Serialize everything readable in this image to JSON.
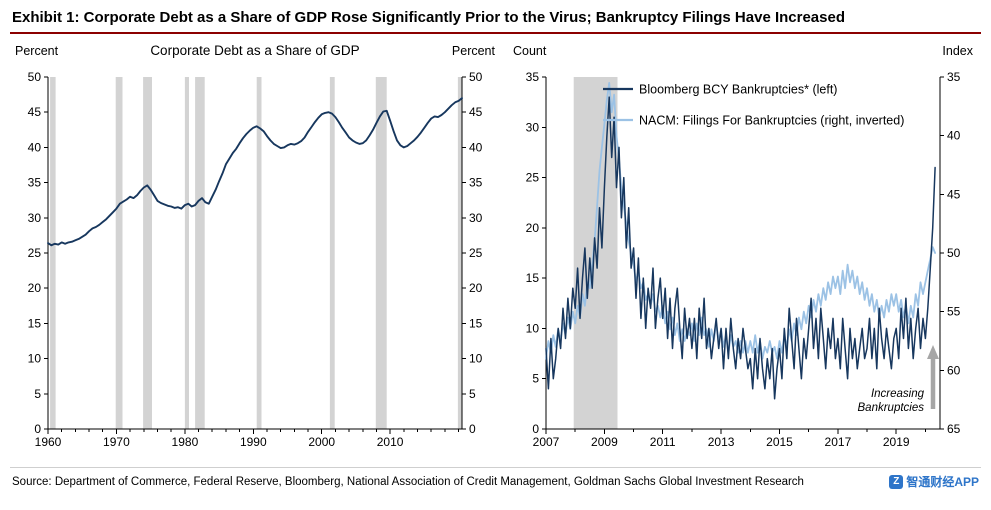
{
  "header": {
    "title": "Exhibit 1: Corporate Debt as a Share of GDP Rose Significantly Prior to the Virus; Bankruptcy Filings Have Increased",
    "rule_color": "#8B0000"
  },
  "colors": {
    "navy": "#17375e",
    "lightblue": "#9cc2e5",
    "recession": "#d3d3d3",
    "axis": "#000000",
    "arrow": "#a6a6a6",
    "watermark_blue": "#2e75c9"
  },
  "footer": {
    "source": "Source: Department of Commerce, Federal Reserve, Bloomberg, National Association of Credit Management, Goldman Sachs Global Investment Research",
    "watermark_text": "智通财经APP",
    "watermark_logo_letter": "Z"
  },
  "chart_data": [
    {
      "name": "corporate-debt-share-of-gdp",
      "type": "line",
      "title": "Corporate Debt as a Share of GDP",
      "unit_left": "Percent",
      "unit_right": "Percent",
      "x_range": [
        1960,
        2020.5
      ],
      "x_major_ticks": [
        1960,
        1970,
        1980,
        1990,
        2000,
        2010
      ],
      "x_minor_step": 2,
      "y_left": {
        "min": 0,
        "max": 50,
        "step": 5
      },
      "y_right": {
        "min": 0,
        "max": 50,
        "step": 5
      },
      "grid": false,
      "recessions": [
        [
          1960.3,
          1961.1
        ],
        [
          1969.9,
          1970.9
        ],
        [
          1973.9,
          1975.2
        ],
        [
          1980.0,
          1980.6
        ],
        [
          1981.5,
          1982.9
        ],
        [
          1990.5,
          1991.2
        ],
        [
          2001.2,
          2001.9
        ],
        [
          2007.9,
          2009.5
        ],
        [
          2019.9,
          2020.5
        ]
      ],
      "series": [
        {
          "name": "Corporate Debt as a Share of GDP",
          "axis": "left",
          "color_key": "navy",
          "width": 1.9,
          "x_start": 1960,
          "x_step": 0.5,
          "values": [
            26.4,
            26.1,
            26.3,
            26.2,
            26.5,
            26.3,
            26.5,
            26.6,
            26.8,
            27.0,
            27.3,
            27.6,
            28.1,
            28.5,
            28.7,
            29.0,
            29.4,
            29.8,
            30.3,
            30.8,
            31.3,
            32.0,
            32.3,
            32.6,
            33.0,
            32.8,
            33.2,
            33.8,
            34.3,
            34.6,
            34.0,
            33.2,
            32.4,
            32.1,
            31.9,
            31.7,
            31.6,
            31.4,
            31.5,
            31.3,
            31.8,
            32.0,
            31.6,
            31.8,
            32.4,
            32.8,
            32.2,
            32.0,
            33.0,
            34.0,
            35.2,
            36.3,
            37.6,
            38.4,
            39.2,
            39.8,
            40.6,
            41.3,
            41.9,
            42.4,
            42.8,
            43.0,
            42.7,
            42.3,
            41.6,
            41.0,
            40.5,
            40.2,
            39.9,
            40.0,
            40.3,
            40.5,
            40.4,
            40.6,
            40.9,
            41.4,
            42.2,
            42.9,
            43.6,
            44.2,
            44.7,
            44.9,
            45.0,
            44.8,
            44.3,
            43.6,
            42.8,
            42.1,
            41.4,
            41.0,
            40.7,
            40.5,
            40.6,
            41.0,
            41.7,
            42.5,
            43.5,
            44.4,
            45.1,
            45.2,
            43.8,
            42.3,
            41.0,
            40.3,
            40.0,
            40.2,
            40.6,
            41.0,
            41.5,
            42.1,
            42.8,
            43.5,
            44.1,
            44.4,
            44.3,
            44.6,
            45.0,
            45.5,
            46.0,
            46.4,
            46.6,
            47.0
          ]
        }
      ]
    },
    {
      "name": "bankruptcies",
      "type": "line",
      "title": "",
      "unit_left": "Count",
      "unit_right": "Index",
      "x_range": [
        2007,
        2020.5
      ],
      "x_major_ticks": [
        2007,
        2009,
        2011,
        2013,
        2015,
        2017,
        2019
      ],
      "x_minor_step": 1,
      "y_left": {
        "min": 0,
        "max": 35,
        "step": 5
      },
      "y_right": {
        "min": 35,
        "max": 65,
        "step": 5,
        "inverted": true
      },
      "grid": false,
      "recessions": [
        [
          2007.95,
          2009.45
        ]
      ],
      "legend": [
        {
          "label": "Bloomberg BCY Bankruptcies* (left)",
          "color_key": "navy"
        },
        {
          "label": "NACM: Filings For Bankruptcies (right, inverted)",
          "color_key": "lightblue"
        }
      ],
      "annotation": {
        "lines": [
          "Increasing",
          "Bankruptcies"
        ]
      },
      "series": [
        {
          "name": "Bloomberg BCY Bankruptcies (left)",
          "axis": "left",
          "color_key": "navy",
          "width": 1.5,
          "x_start": 2007,
          "x_step": 0.083333,
          "values": [
            8,
            4,
            9,
            5,
            7,
            10,
            8,
            12,
            9,
            13,
            10,
            14,
            12,
            16,
            11,
            15,
            18,
            13,
            17,
            14,
            19,
            16,
            22,
            18,
            24,
            29,
            33,
            27,
            31,
            24,
            28,
            21,
            25,
            18,
            22,
            16,
            18,
            13,
            17,
            11,
            15,
            10,
            14,
            12,
            16,
            10,
            13,
            15,
            11,
            14,
            9,
            13,
            8,
            12,
            14,
            10,
            7,
            12,
            9,
            11,
            8,
            11,
            7,
            12,
            9,
            13,
            8,
            10,
            7,
            9,
            11,
            8,
            10,
            6,
            10,
            7,
            11,
            8,
            6,
            9,
            7,
            10,
            8,
            6,
            7,
            4,
            8,
            5,
            9,
            6,
            4,
            7,
            5,
            8,
            3,
            6,
            8,
            5,
            10,
            7,
            12,
            9,
            6,
            11,
            8,
            5,
            9,
            7,
            10,
            13,
            8,
            11,
            7,
            12,
            9,
            6,
            10,
            8,
            11,
            7,
            9,
            6,
            11,
            8,
            5,
            10,
            7,
            9,
            6,
            8,
            10,
            7,
            8,
            11,
            7,
            10,
            6,
            12,
            9,
            7,
            10,
            8,
            6,
            9,
            10,
            7,
            12,
            9,
            13,
            8,
            11,
            7,
            10,
            12,
            8,
            11,
            9,
            12,
            16,
            20,
            26
          ]
        },
        {
          "name": "NACM: Filings For Bankruptcies (right, inverted)",
          "axis": "right",
          "color_key": "lightblue",
          "width": 1.8,
          "x_start": 2007,
          "x_step": 0.083333,
          "values": [
            59,
            57.5,
            58.5,
            57,
            58,
            56.5,
            57.5,
            56,
            57,
            55.5,
            56.5,
            55,
            56,
            54.5,
            55.5,
            53.5,
            54.5,
            52.5,
            53,
            51,
            49,
            46,
            43,
            41,
            39,
            37,
            35.5,
            38,
            36.5,
            40,
            42,
            44.5,
            46,
            47.5,
            49,
            50,
            51,
            52.5,
            51.5,
            53,
            52.5,
            54,
            53.5,
            54.5,
            53.5,
            55,
            54.5,
            55.5,
            54.5,
            56,
            55,
            56.5,
            55.5,
            57,
            56,
            57.5,
            56.5,
            57.5,
            56.5,
            57,
            56,
            57.5,
            56,
            57,
            55.5,
            57,
            56.5,
            58,
            56.5,
            57.5,
            56,
            57.5,
            56.5,
            58,
            57,
            58.5,
            57,
            58,
            57.5,
            58.5,
            57.5,
            58.5,
            57.5,
            58.5,
            57.5,
            58.5,
            57,
            58.5,
            57.5,
            59,
            58,
            58.5,
            57.5,
            58.5,
            58,
            59,
            57.5,
            58.5,
            57,
            58,
            56.5,
            57.5,
            56,
            57,
            55.5,
            56.5,
            55,
            56,
            54.5,
            55.5,
            54,
            55,
            53.5,
            54.5,
            53,
            54,
            52.5,
            53.5,
            52,
            53,
            52,
            53.5,
            51.5,
            53,
            51,
            52.5,
            51.5,
            53,
            52,
            53.5,
            52.5,
            54,
            53,
            54.5,
            53.5,
            55,
            54,
            55.5,
            54.5,
            55.5,
            54,
            55,
            53.5,
            54.5,
            53.5,
            55,
            54,
            55.5,
            54.5,
            56,
            54.5,
            55.5,
            53.5,
            54.5,
            52.5,
            53.5,
            52.5,
            51.5,
            50.5,
            49.5,
            50
          ]
        }
      ]
    }
  ]
}
